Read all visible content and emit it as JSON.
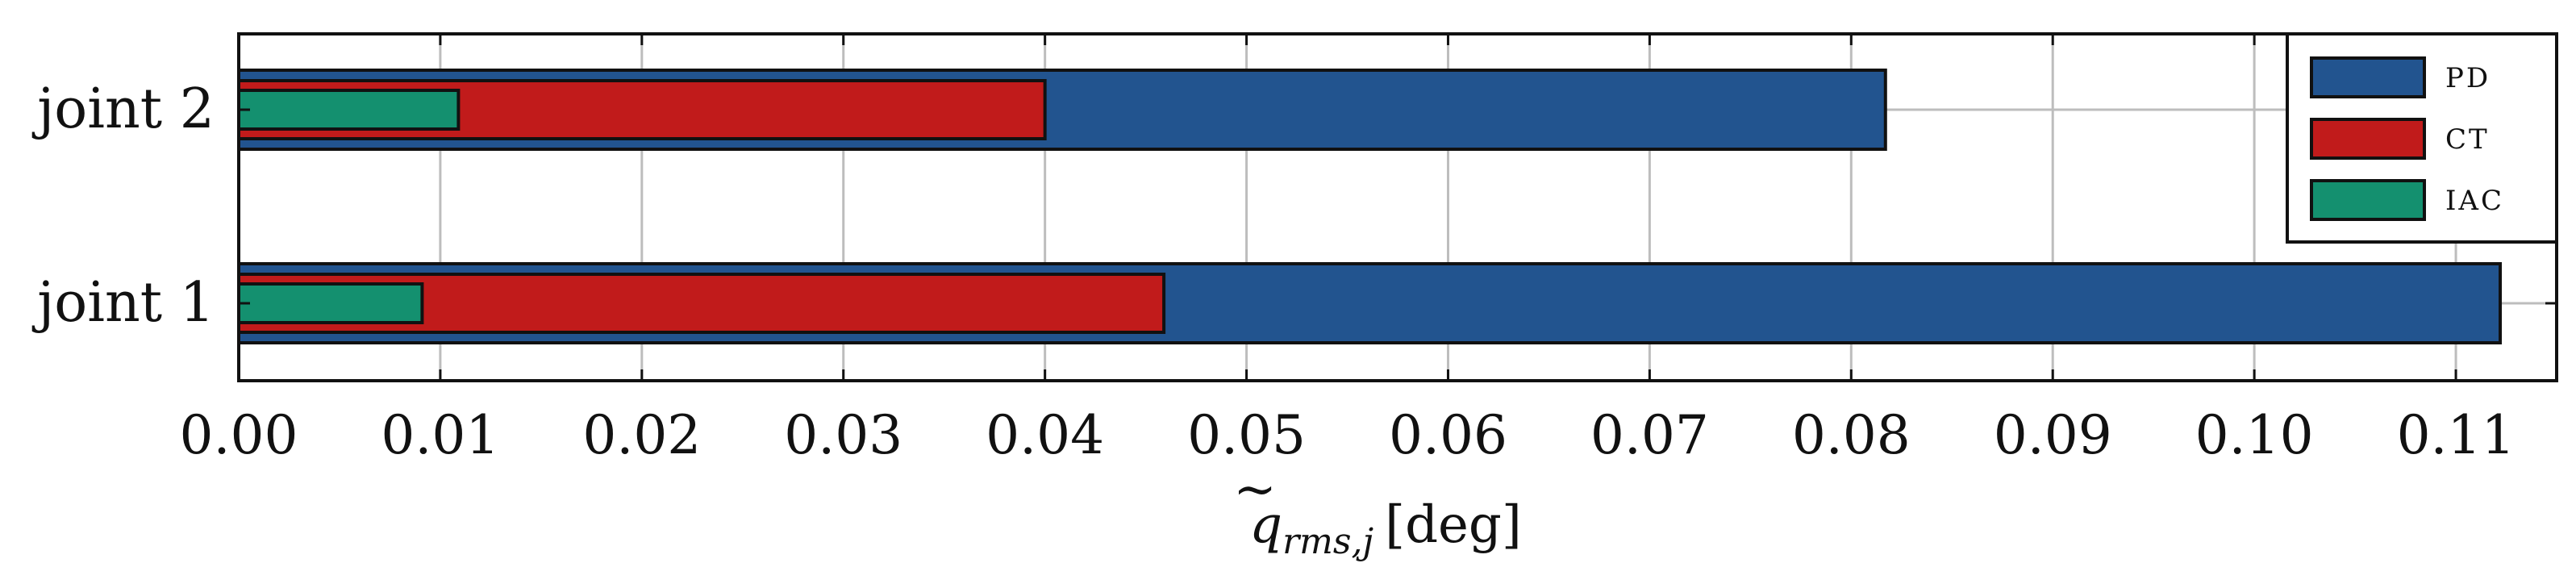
{
  "chart_data": {
    "type": "bar",
    "orientation": "horizontal",
    "categories": [
      "joint 1",
      "joint 2"
    ],
    "series": [
      {
        "name": "PD",
        "color": "#22548f",
        "values": [
          0.1122,
          0.0817
        ]
      },
      {
        "name": "CT",
        "color": "#c11b1b",
        "values": [
          0.0459,
          0.04
        ]
      },
      {
        "name": "IAC",
        "color": "#14906f",
        "values": [
          0.0091,
          0.0109
        ]
      }
    ],
    "x_ticks": [
      "0.00",
      "0.01",
      "0.02",
      "0.03",
      "0.04",
      "0.05",
      "0.06",
      "0.07",
      "0.08",
      "0.09",
      "0.10",
      "0.11"
    ],
    "xlim": [
      0,
      0.115
    ],
    "xlabel": {
      "main": "q",
      "accent": "~",
      "subscript": "rms,j",
      "unit": "[deg]"
    },
    "grid": true,
    "legend_position": "top-right"
  }
}
